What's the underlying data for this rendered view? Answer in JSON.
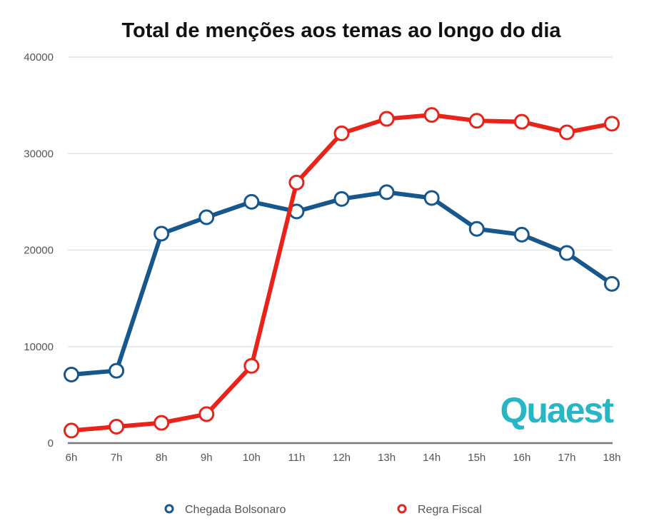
{
  "chart_data": {
    "type": "line",
    "title": "Total de menções aos temas ao longo do dia",
    "xlabel": "",
    "ylabel": "",
    "x": [
      "6h",
      "7h",
      "8h",
      "9h",
      "10h",
      "11h",
      "12h",
      "13h",
      "14h",
      "15h",
      "16h",
      "17h",
      "18h"
    ],
    "ylim": [
      0,
      40000
    ],
    "yticks": [
      "0",
      "10000",
      "20000",
      "30000",
      "40000"
    ],
    "ytick_values": [
      0,
      10000,
      20000,
      30000,
      40000
    ],
    "grid": true,
    "legend_position": "bottom",
    "series": [
      {
        "name": "Chegada Bolsonaro",
        "color": "#17578b",
        "values": [
          7100,
          7500,
          21700,
          23400,
          25000,
          24000,
          25300,
          26000,
          25400,
          22200,
          21600,
          19700,
          16500
        ]
      },
      {
        "name": "Regra Fiscal",
        "color": "#e8231a",
        "values": [
          1300,
          1700,
          2100,
          3000,
          8000,
          27000,
          32100,
          33600,
          34000,
          33400,
          33300,
          32200,
          33100
        ]
      }
    ]
  },
  "logo": {
    "text": "Quaest",
    "color": "#27b6c3"
  }
}
